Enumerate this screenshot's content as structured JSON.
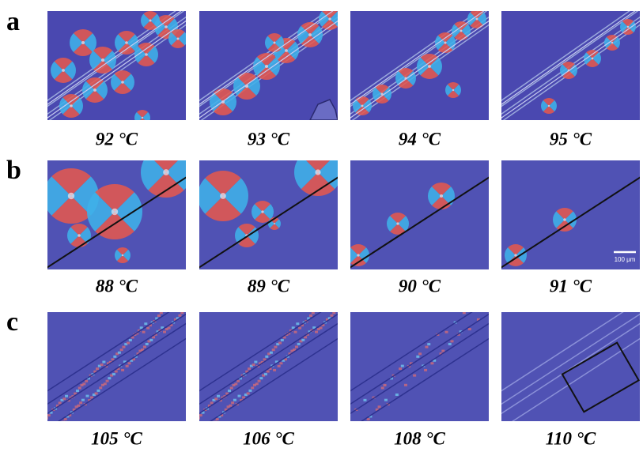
{
  "panels": [
    {
      "label": "a",
      "captions": [
        "92 °C",
        "93 °C",
        "94 °C",
        "95 °C"
      ]
    },
    {
      "label": "b",
      "captions": [
        "88 °C",
        "89 °C",
        "90 °C",
        "91 °C"
      ]
    },
    {
      "label": "c",
      "captions": [
        "105 °C",
        "106 °C",
        "108 °C",
        "110 °C"
      ]
    }
  ],
  "scale_bar": "100 μm"
}
